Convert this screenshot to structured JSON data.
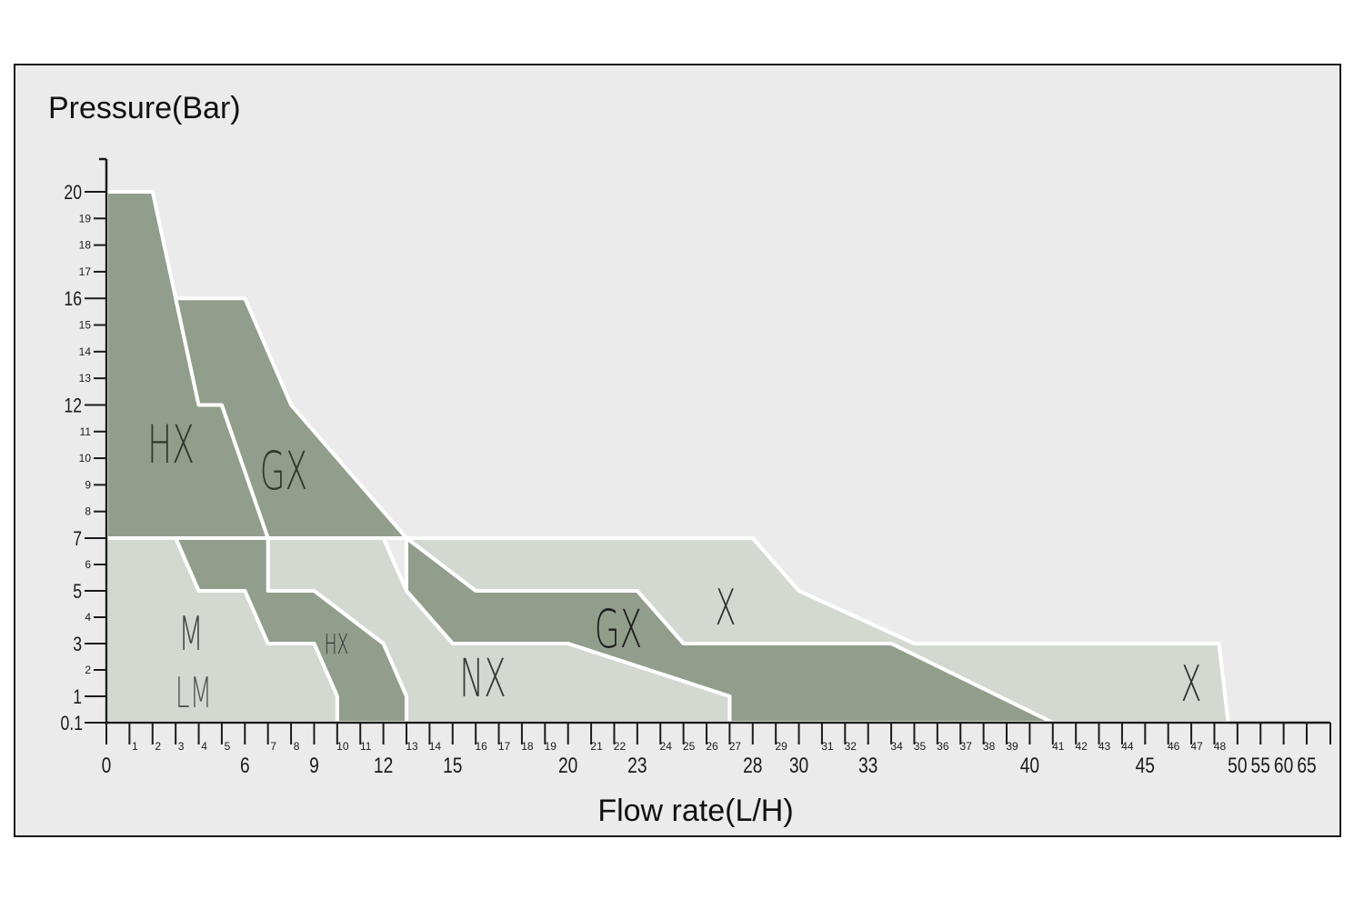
{
  "chart_data": {
    "type": "area",
    "title": "",
    "ylabel": "Pressure(Bar)",
    "xlabel": "Flow rate(L/H)",
    "x_ticks_major": [
      "0",
      "6",
      "9",
      "12",
      "15",
      "20",
      "23",
      "28",
      "30",
      "33",
      "40",
      "45",
      "50",
      "55",
      "60",
      "65"
    ],
    "x_ticks_minor": [
      "1",
      "2",
      "3",
      "4",
      "5",
      "7",
      "8",
      "10",
      "11",
      "13",
      "14",
      "16",
      "17",
      "18",
      "19",
      "21",
      "22",
      "24",
      "25",
      "26",
      "27",
      "29",
      "31",
      "32",
      "34",
      "35",
      "36",
      "37",
      "38",
      "39",
      "41",
      "42",
      "43",
      "44",
      "46",
      "47",
      "48"
    ],
    "y_ticks_major": [
      "0.1",
      "1",
      "3",
      "5",
      "7",
      "12",
      "16",
      "20"
    ],
    "y_ticks_minor": [
      "2",
      "4",
      "6",
      "8",
      "9",
      "10",
      "11",
      "13",
      "14",
      "15",
      "17",
      "18",
      "19"
    ],
    "colors": {
      "dark_region": "#929e8c",
      "light_region": "#d3d9d1",
      "outline": "#ffffff",
      "background": "#ebebeb"
    },
    "series": [
      {
        "name": "HX",
        "shade": "dark",
        "points": [
          [
            0,
            20
          ],
          [
            2,
            20
          ],
          [
            3,
            16
          ],
          [
            4,
            12
          ],
          [
            5,
            12
          ],
          [
            7,
            7
          ],
          [
            3,
            7
          ],
          [
            0,
            7
          ]
        ]
      },
      {
        "name": "GX",
        "shade": "dark",
        "points": [
          [
            3,
            16
          ],
          [
            6,
            16
          ],
          [
            8,
            12
          ],
          [
            13,
            7
          ],
          [
            7,
            7
          ],
          [
            5,
            12
          ],
          [
            4,
            12
          ]
        ]
      },
      {
        "name": "X",
        "shade": "light",
        "points": [
          [
            13,
            7
          ],
          [
            28,
            7
          ],
          [
            30,
            5
          ],
          [
            35,
            3
          ],
          [
            49,
            3
          ],
          [
            51,
            0.1
          ],
          [
            41,
            0.1
          ],
          [
            34,
            3
          ],
          [
            25,
            3
          ],
          [
            23,
            5
          ],
          [
            16,
            5
          ]
        ]
      },
      {
        "name": "GX",
        "shade": "dark",
        "points": [
          [
            13,
            7
          ],
          [
            16,
            5
          ],
          [
            23,
            5
          ],
          [
            25,
            3
          ],
          [
            34,
            3
          ],
          [
            41,
            0.1
          ],
          [
            27,
            0.1
          ],
          [
            27,
            1
          ],
          [
            20,
            3
          ],
          [
            15,
            3
          ],
          [
            13,
            5
          ]
        ]
      },
      {
        "name": "NX",
        "shade": "light",
        "points": [
          [
            7,
            7
          ],
          [
            12,
            7
          ],
          [
            13,
            5
          ],
          [
            15,
            3
          ],
          [
            20,
            3
          ],
          [
            27,
            1
          ],
          [
            27,
            0.1
          ],
          [
            13,
            0.1
          ],
          [
            13,
            1
          ],
          [
            12,
            3
          ],
          [
            9,
            5
          ],
          [
            7,
            5
          ]
        ]
      },
      {
        "name": "HX",
        "shade": "dark",
        "points": [
          [
            3,
            7
          ],
          [
            7,
            7
          ],
          [
            7,
            5
          ],
          [
            9,
            5
          ],
          [
            12,
            3
          ],
          [
            13,
            1
          ],
          [
            13,
            0.1
          ],
          [
            10,
            0.1
          ],
          [
            10,
            1
          ],
          [
            9,
            3
          ],
          [
            7,
            3
          ],
          [
            6,
            5
          ],
          [
            4,
            5
          ]
        ]
      },
      {
        "name": "M",
        "shade": "light",
        "points": [
          [
            0,
            7
          ],
          [
            3,
            7
          ],
          [
            4,
            5
          ],
          [
            6,
            5
          ],
          [
            7,
            3
          ],
          [
            9,
            3
          ],
          [
            10,
            1
          ],
          [
            10,
            0.1
          ],
          [
            0,
            0.1
          ]
        ]
      }
    ],
    "labels": [
      "HX",
      "GX",
      "M",
      "LM",
      "HX",
      "NX",
      "GX",
      "X",
      "X"
    ]
  }
}
